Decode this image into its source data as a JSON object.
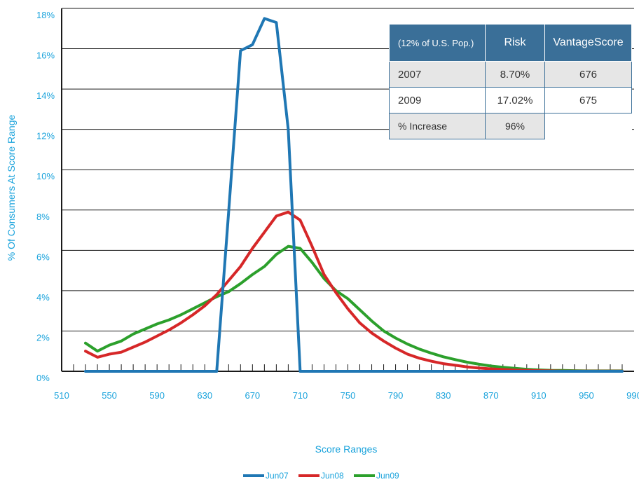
{
  "chart_data": {
    "type": "line",
    "xlabel": "Score Ranges",
    "ylabel": "% Of Consumers At Score Range",
    "xlim": [
      510,
      990
    ],
    "ylim": [
      0,
      18
    ],
    "x_ticks": [
      510,
      550,
      590,
      630,
      670,
      710,
      750,
      790,
      830,
      870,
      910,
      950,
      990
    ],
    "y_ticks": [
      "0%",
      "2%",
      "4%",
      "6%",
      "8%",
      "10%",
      "12%",
      "14%",
      "16%",
      "18%"
    ],
    "grid": "horizontal",
    "legend_position": "bottom",
    "colors": {
      "Jun07": "#1f77b4",
      "Jun08": "#d62728",
      "Jun09": "#2ca02c"
    },
    "series": [
      {
        "name": "Jun07",
        "x": [
          530,
          540,
          550,
          560,
          570,
          580,
          590,
          600,
          610,
          620,
          630,
          640,
          650,
          660,
          670,
          680,
          690,
          700,
          710,
          720,
          730,
          740,
          750,
          760,
          770,
          780,
          790,
          800,
          810,
          820,
          830,
          840,
          850,
          860,
          870,
          880,
          890,
          900,
          910,
          920,
          930,
          940,
          950,
          960,
          970,
          980
        ],
        "values": [
          0,
          0,
          0,
          0,
          0,
          0,
          0,
          0,
          0,
          0,
          0,
          0,
          7.9,
          15.9,
          16.2,
          17.5,
          17.3,
          12,
          0,
          0,
          0,
          0,
          0,
          0,
          0,
          0,
          0,
          0,
          0,
          0,
          0,
          0,
          0,
          0,
          0,
          0,
          0,
          0,
          0,
          0,
          0,
          0,
          0,
          0,
          0,
          0
        ]
      },
      {
        "name": "Jun08",
        "x": [
          530,
          540,
          550,
          560,
          570,
          580,
          590,
          600,
          610,
          620,
          630,
          640,
          650,
          660,
          670,
          680,
          690,
          700,
          710,
          720,
          730,
          740,
          750,
          760,
          770,
          780,
          790,
          800,
          810,
          820,
          830,
          840,
          850,
          860,
          870,
          880,
          890,
          900,
          910,
          920,
          930,
          940,
          950,
          960,
          970,
          980
        ],
        "values": [
          1.0,
          0.7,
          0.85,
          0.95,
          1.2,
          1.45,
          1.75,
          2.05,
          2.4,
          2.8,
          3.25,
          3.8,
          4.5,
          5.2,
          6.1,
          6.9,
          7.7,
          7.9,
          7.5,
          6.2,
          4.8,
          3.9,
          3.1,
          2.4,
          1.9,
          1.5,
          1.15,
          0.85,
          0.65,
          0.5,
          0.38,
          0.3,
          0.22,
          0.16,
          0.12,
          0.09,
          0.06,
          0.04,
          0.03,
          0.02,
          0.01,
          0.01,
          0.01,
          0.01,
          0.01,
          0.01
        ]
      },
      {
        "name": "Jun09",
        "x": [
          530,
          540,
          550,
          560,
          570,
          580,
          590,
          600,
          610,
          620,
          630,
          640,
          650,
          660,
          670,
          680,
          690,
          700,
          710,
          720,
          730,
          740,
          750,
          760,
          770,
          780,
          790,
          800,
          810,
          820,
          830,
          840,
          850,
          860,
          870,
          880,
          890,
          900,
          910,
          920,
          930,
          940,
          950,
          960,
          970,
          980
        ],
        "values": [
          1.4,
          1.0,
          1.3,
          1.5,
          1.85,
          2.1,
          2.35,
          2.55,
          2.8,
          3.1,
          3.4,
          3.7,
          3.95,
          4.35,
          4.8,
          5.2,
          5.8,
          6.2,
          6.1,
          5.4,
          4.6,
          4.0,
          3.6,
          3.05,
          2.5,
          2.0,
          1.65,
          1.35,
          1.1,
          0.9,
          0.72,
          0.58,
          0.45,
          0.35,
          0.26,
          0.2,
          0.15,
          0.1,
          0.07,
          0.05,
          0.04,
          0.03,
          0.02,
          0.02,
          0.02,
          0.02
        ]
      }
    ]
  },
  "table": {
    "headers": [
      "(12% of U.S. Pop.)",
      "Risk",
      "VantageScore"
    ],
    "rows": [
      [
        "2007",
        "8.70%",
        "676"
      ],
      [
        "2009",
        "17.02%",
        "675"
      ],
      [
        "% Increase",
        "96%",
        ""
      ]
    ]
  }
}
